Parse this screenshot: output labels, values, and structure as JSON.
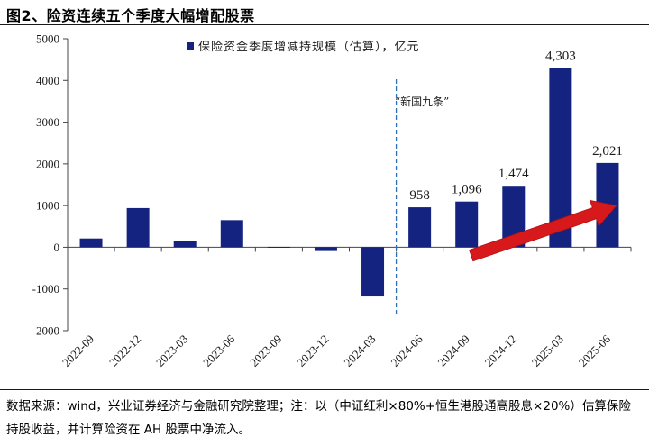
{
  "figure": {
    "title": "图2、险资连续五个季度大幅增配股票",
    "source_note": "数据来源：wind，兴业证券经济与金融研究院整理；注：以（中证红利×80%+恒生港股通高股息×20%）估算保险持股收益，并计算险资在 AH 股票中净流入。"
  },
  "chart_data": {
    "type": "bar",
    "categories": [
      "2022-09",
      "2022-12",
      "2023-03",
      "2023-06",
      "2023-09",
      "2023-12",
      "2024-03",
      "2024-06",
      "2024-09",
      "2024-12",
      "2025-03",
      "2025-06"
    ],
    "series": [
      {
        "name": "保险资金季度增减持规模（估算），亿元",
        "values": [
          210,
          940,
          140,
          650,
          10,
          -90,
          -1180,
          958,
          1096,
          1474,
          4303,
          2021
        ],
        "color": "#142380"
      }
    ],
    "data_labels": [
      {
        "category": "2024-06",
        "text": "958"
      },
      {
        "category": "2024-09",
        "text": "1,096"
      },
      {
        "category": "2024-12",
        "text": "1,474"
      },
      {
        "category": "2025-03",
        "text": "4,303"
      },
      {
        "category": "2025-06",
        "text": "2,021"
      }
    ],
    "y_ticks": [
      "-2000",
      "-1000",
      "0",
      "1000",
      "2000",
      "3000",
      "4000",
      "5000"
    ],
    "ylim": [
      -2000,
      5000
    ],
    "grid": false,
    "legend_position": "top",
    "annotation": {
      "text": "“新国九条”",
      "divider_between": [
        "2024-03",
        "2024-06"
      ],
      "divider_color": "#2f6fb3"
    },
    "trend_arrow": {
      "from_category": "2024-09",
      "from_value": -200,
      "to_category": "2025-06",
      "to_value": 1000,
      "color": "#d7191c"
    }
  }
}
